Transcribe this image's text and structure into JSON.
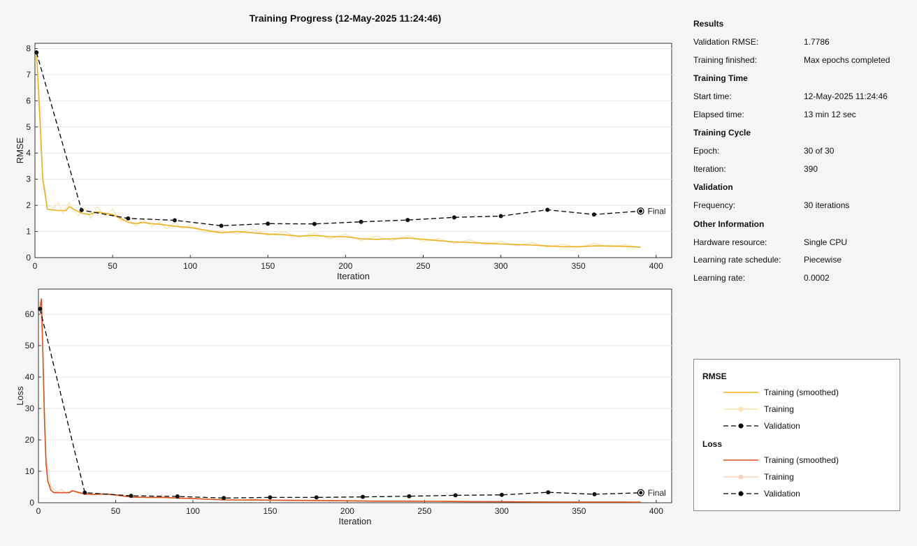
{
  "title": "Training Progress (12-May-2025 11:24:46)",
  "info": {
    "sections": [
      {
        "title": "Results",
        "rows": [
          {
            "label": "Validation RMSE:",
            "value": "1.7786"
          },
          {
            "label": "Training finished:",
            "value": "Max epochs completed"
          }
        ]
      },
      {
        "title": "Training Time",
        "rows": [
          {
            "label": "Start time:",
            "value": "12-May-2025 11:24:46"
          },
          {
            "label": "Elapsed time:",
            "value": "13 min 12 sec"
          }
        ]
      },
      {
        "title": "Training Cycle",
        "rows": [
          {
            "label": "Epoch:",
            "value": "30 of 30"
          },
          {
            "label": "Iteration:",
            "value": "390"
          }
        ]
      },
      {
        "title": "Validation",
        "rows": [
          {
            "label": "Frequency:",
            "value": "30 iterations"
          }
        ]
      },
      {
        "title": "Other Information",
        "rows": [
          {
            "label": "Hardware resource:",
            "value": "Single CPU"
          },
          {
            "label": "Learning rate schedule:",
            "value": "Piecewise"
          },
          {
            "label": "Learning rate:",
            "value": "0.0002"
          }
        ]
      }
    ]
  },
  "legend": {
    "groups": [
      {
        "title": "RMSE",
        "items": [
          {
            "label": "Training (smoothed)",
            "kind": "smoothed",
            "color": "#edb120"
          },
          {
            "label": "Training",
            "kind": "raw",
            "color": "#fbe2ae"
          },
          {
            "label": "Validation",
            "kind": "validation",
            "color": "#000000"
          }
        ]
      },
      {
        "title": "Loss",
        "items": [
          {
            "label": "Training (smoothed)",
            "kind": "smoothed",
            "color": "#d95319"
          },
          {
            "label": "Training",
            "kind": "raw",
            "color": "#f9d4bb"
          },
          {
            "label": "Validation",
            "kind": "validation",
            "color": "#000000"
          }
        ]
      }
    ]
  },
  "chart_data": [
    {
      "type": "line",
      "ylabel": "RMSE",
      "xlabel": "Iteration",
      "xlim": [
        0,
        410
      ],
      "ylim": [
        0,
        8.2
      ],
      "xticks": [
        0,
        50,
        100,
        150,
        200,
        250,
        300,
        350,
        400
      ],
      "yticks": [
        0,
        1,
        2,
        3,
        4,
        5,
        6,
        7,
        8
      ],
      "final_label": "Final",
      "colors": {
        "smoothed": "#edb120",
        "raw": "#fbe2ae"
      },
      "series": [
        {
          "name": "Training (smoothed)",
          "points": [
            [
              1,
              7.9
            ],
            [
              3,
              5.5
            ],
            [
              5,
              3.0
            ],
            [
              8,
              1.85
            ],
            [
              15,
              1.8
            ],
            [
              20,
              1.8
            ],
            [
              22,
              1.95
            ],
            [
              25,
              1.85
            ],
            [
              30,
              1.7
            ],
            [
              35,
              1.65
            ],
            [
              40,
              1.75
            ],
            [
              45,
              1.7
            ],
            [
              50,
              1.65
            ],
            [
              55,
              1.5
            ],
            [
              60,
              1.35
            ],
            [
              65,
              1.3
            ],
            [
              70,
              1.35
            ],
            [
              75,
              1.3
            ],
            [
              80,
              1.28
            ],
            [
              90,
              1.2
            ],
            [
              100,
              1.15
            ],
            [
              110,
              1.05
            ],
            [
              120,
              0.95
            ],
            [
              130,
              1.0
            ],
            [
              140,
              0.95
            ],
            [
              150,
              0.9
            ],
            [
              160,
              0.88
            ],
            [
              170,
              0.82
            ],
            [
              180,
              0.85
            ],
            [
              190,
              0.8
            ],
            [
              200,
              0.8
            ],
            [
              210,
              0.72
            ],
            [
              220,
              0.7
            ],
            [
              230,
              0.72
            ],
            [
              240,
              0.75
            ],
            [
              250,
              0.7
            ],
            [
              260,
              0.65
            ],
            [
              270,
              0.6
            ],
            [
              280,
              0.58
            ],
            [
              290,
              0.55
            ],
            [
              300,
              0.52
            ],
            [
              310,
              0.5
            ],
            [
              320,
              0.48
            ],
            [
              330,
              0.45
            ],
            [
              340,
              0.42
            ],
            [
              350,
              0.42
            ],
            [
              360,
              0.45
            ],
            [
              370,
              0.45
            ],
            [
              380,
              0.43
            ],
            [
              390,
              0.4
            ]
          ]
        },
        {
          "name": "Training",
          "points": [
            [
              1,
              8.0
            ],
            [
              3,
              6.0
            ],
            [
              5,
              3.2
            ],
            [
              8,
              2.0
            ],
            [
              12,
              1.9
            ],
            [
              15,
              2.1
            ],
            [
              18,
              1.7
            ],
            [
              22,
              2.1
            ],
            [
              25,
              1.8
            ],
            [
              28,
              1.6
            ],
            [
              32,
              1.9
            ],
            [
              36,
              1.5
            ],
            [
              40,
              1.95
            ],
            [
              45,
              1.6
            ],
            [
              50,
              1.85
            ],
            [
              55,
              1.4
            ],
            [
              60,
              1.5
            ],
            [
              65,
              1.2
            ],
            [
              70,
              1.45
            ],
            [
              75,
              1.2
            ],
            [
              80,
              1.35
            ],
            [
              85,
              1.1
            ],
            [
              90,
              1.35
            ],
            [
              95,
              1.1
            ],
            [
              100,
              1.25
            ],
            [
              110,
              0.95
            ],
            [
              120,
              1.05
            ],
            [
              130,
              0.9
            ],
            [
              140,
              1.1
            ],
            [
              150,
              0.85
            ],
            [
              160,
              1.0
            ],
            [
              170,
              0.78
            ],
            [
              180,
              0.95
            ],
            [
              190,
              0.72
            ],
            [
              200,
              0.9
            ],
            [
              210,
              0.65
            ],
            [
              220,
              0.82
            ],
            [
              230,
              0.65
            ],
            [
              240,
              0.85
            ],
            [
              250,
              0.62
            ],
            [
              260,
              0.72
            ],
            [
              270,
              0.55
            ],
            [
              280,
              0.68
            ],
            [
              290,
              0.5
            ],
            [
              300,
              0.62
            ],
            [
              310,
              0.45
            ],
            [
              320,
              0.58
            ],
            [
              330,
              0.4
            ],
            [
              340,
              0.52
            ],
            [
              350,
              0.38
            ],
            [
              360,
              0.55
            ],
            [
              370,
              0.4
            ],
            [
              380,
              0.5
            ],
            [
              390,
              0.38
            ]
          ]
        },
        {
          "name": "Validation",
          "points": [
            [
              1,
              7.85
            ],
            [
              30,
              1.82
            ],
            [
              60,
              1.5
            ],
            [
              90,
              1.43
            ],
            [
              120,
              1.22
            ],
            [
              150,
              1.3
            ],
            [
              180,
              1.29
            ],
            [
              210,
              1.37
            ],
            [
              240,
              1.44
            ],
            [
              270,
              1.54
            ],
            [
              300,
              1.59
            ],
            [
              330,
              1.83
            ],
            [
              360,
              1.65
            ],
            [
              390,
              1.7786
            ]
          ]
        }
      ]
    },
    {
      "type": "line",
      "ylabel": "Loss",
      "xlabel": "Iteration",
      "xlim": [
        0,
        410
      ],
      "ylim": [
        0,
        68
      ],
      "xticks": [
        0,
        50,
        100,
        150,
        200,
        250,
        300,
        350,
        400
      ],
      "yticks": [
        0,
        10,
        20,
        30,
        40,
        50,
        60
      ],
      "final_label": "Final",
      "colors": {
        "smoothed": "#d95319",
        "raw": "#f9d4bb"
      },
      "series": [
        {
          "name": "Training (smoothed)",
          "points": [
            [
              1,
              62
            ],
            [
              2,
              65
            ],
            [
              3,
              45
            ],
            [
              4,
              25
            ],
            [
              5,
              12
            ],
            [
              6,
              7
            ],
            [
              8,
              4
            ],
            [
              10,
              3.2
            ],
            [
              20,
              3.2
            ],
            [
              22,
              3.8
            ],
            [
              25,
              3.4
            ],
            [
              30,
              2.8
            ],
            [
              35,
              2.6
            ],
            [
              40,
              2.8
            ],
            [
              45,
              2.7
            ],
            [
              50,
              2.5
            ],
            [
              60,
              1.8
            ],
            [
              70,
              1.7
            ],
            [
              80,
              1.7
            ],
            [
              90,
              1.5
            ],
            [
              100,
              1.3
            ],
            [
              110,
              1.1
            ],
            [
              120,
              0.9
            ],
            [
              140,
              0.85
            ],
            [
              160,
              0.75
            ],
            [
              180,
              0.7
            ],
            [
              200,
              0.6
            ],
            [
              220,
              0.5
            ],
            [
              240,
              0.5
            ],
            [
              260,
              0.45
            ],
            [
              280,
              0.35
            ],
            [
              300,
              0.3
            ],
            [
              320,
              0.25
            ],
            [
              340,
              0.2
            ],
            [
              360,
              0.2
            ],
            [
              380,
              0.2
            ],
            [
              390,
              0.18
            ]
          ]
        },
        {
          "name": "Training",
          "points": [
            [
              1,
              64
            ],
            [
              3,
              48
            ],
            [
              5,
              14
            ],
            [
              8,
              5
            ],
            [
              12,
              3.5
            ],
            [
              15,
              4.2
            ],
            [
              18,
              3.0
            ],
            [
              22,
              4.0
            ],
            [
              26,
              3.0
            ],
            [
              30,
              2.6
            ],
            [
              35,
              3.2
            ],
            [
              40,
              2.4
            ],
            [
              45,
              3.0
            ],
            [
              50,
              2.2
            ],
            [
              60,
              2.0
            ],
            [
              70,
              1.6
            ],
            [
              80,
              2.0
            ],
            [
              90,
              1.3
            ],
            [
              100,
              1.5
            ],
            [
              110,
              1.0
            ],
            [
              120,
              1.2
            ],
            [
              130,
              0.8
            ],
            [
              140,
              1.1
            ],
            [
              150,
              0.7
            ],
            [
              160,
              0.9
            ],
            [
              180,
              0.8
            ],
            [
              200,
              0.7
            ],
            [
              220,
              0.6
            ],
            [
              240,
              0.55
            ],
            [
              260,
              0.5
            ],
            [
              280,
              0.4
            ],
            [
              300,
              0.35
            ],
            [
              320,
              0.3
            ],
            [
              340,
              0.25
            ],
            [
              360,
              0.3
            ],
            [
              380,
              0.25
            ],
            [
              390,
              0.2
            ]
          ]
        },
        {
          "name": "Validation",
          "points": [
            [
              1,
              61.7
            ],
            [
              30,
              3.2
            ],
            [
              60,
              2.2
            ],
            [
              90,
              1.99
            ],
            [
              120,
              1.5
            ],
            [
              150,
              1.7
            ],
            [
              180,
              1.68
            ],
            [
              210,
              1.85
            ],
            [
              240,
              2.06
            ],
            [
              270,
              2.35
            ],
            [
              300,
              2.5
            ],
            [
              330,
              3.3
            ],
            [
              360,
              2.7
            ],
            [
              390,
              3.16
            ]
          ]
        }
      ]
    }
  ]
}
